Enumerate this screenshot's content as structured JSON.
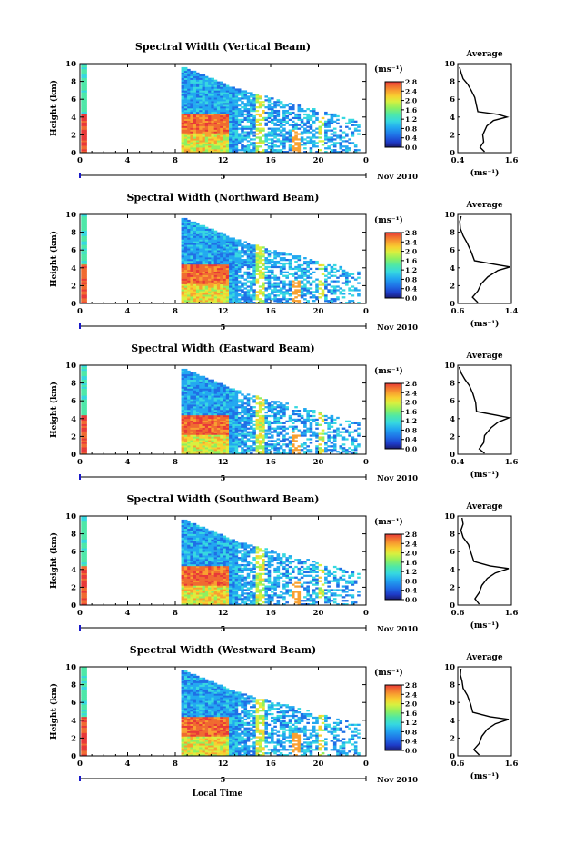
{
  "chart_data": [
    {
      "type": "heatmap",
      "title": "Spectral Width (Vertical Beam)",
      "ylabel": "Height (km)",
      "ylim": [
        0,
        10
      ],
      "yticks": [
        "0",
        "2",
        "4",
        "6",
        "8",
        "10"
      ],
      "xlim": [
        0,
        24
      ],
      "xticks": [
        "0",
        "4",
        "8",
        "12",
        "16",
        "20",
        "0"
      ],
      "date_marker": "5",
      "date_label": "Nov 2010",
      "colorbar": {
        "unit": "(ms⁻¹)",
        "ticks": [
          "0.0",
          "0.4",
          "0.8",
          "1.2",
          "1.6",
          "2.0",
          "2.4",
          "2.8"
        ]
      },
      "average": {
        "title": "Average",
        "xlabel": "(ms⁻¹)",
        "xlim": [
          0.4,
          1.6
        ],
        "xticks": [
          "0.4",
          "1.6"
        ],
        "profile": [
          [
            1.0,
            0.1
          ],
          [
            0.9,
            0.6
          ],
          [
            0.98,
            1.2
          ],
          [
            0.96,
            2.0
          ],
          [
            1.05,
            3.0
          ],
          [
            1.2,
            3.6
          ],
          [
            1.5,
            4.0
          ],
          [
            1.3,
            4.3
          ],
          [
            0.85,
            4.6
          ],
          [
            0.82,
            5.3
          ],
          [
            0.78,
            6.2
          ],
          [
            0.7,
            7.0
          ],
          [
            0.62,
            7.7
          ],
          [
            0.52,
            8.3
          ],
          [
            0.48,
            8.9
          ],
          [
            0.44,
            9.6
          ]
        ]
      }
    },
    {
      "type": "heatmap",
      "title": "Spectral Width (Northward Beam)",
      "ylabel": "Height (km)",
      "ylim": [
        0,
        10
      ],
      "yticks": [
        "0",
        "2",
        "4",
        "6",
        "8",
        "10"
      ],
      "xlim": [
        0,
        24
      ],
      "xticks": [
        "0",
        "4",
        "8",
        "12",
        "16",
        "20",
        "0"
      ],
      "date_marker": "5",
      "date_label": "Nov 2010",
      "colorbar": {
        "unit": "(ms⁻¹)",
        "ticks": [
          "0.0",
          "0.4",
          "0.8",
          "1.2",
          "1.6",
          "2.0",
          "2.4",
          "2.8"
        ]
      },
      "average": {
        "title": "Average",
        "xlabel": "(ms⁻¹)",
        "xlim": [
          0.6,
          1.4
        ],
        "xticks": [
          "0.6",
          "1.4"
        ],
        "profile": [
          [
            0.9,
            0.1
          ],
          [
            0.82,
            0.7
          ],
          [
            0.9,
            1.4
          ],
          [
            0.95,
            2.2
          ],
          [
            1.05,
            3.0
          ],
          [
            1.2,
            3.7
          ],
          [
            1.38,
            4.1
          ],
          [
            1.15,
            4.4
          ],
          [
            0.85,
            4.8
          ],
          [
            0.8,
            5.8
          ],
          [
            0.74,
            6.8
          ],
          [
            0.68,
            7.6
          ],
          [
            0.64,
            8.4
          ],
          [
            0.63,
            9.2
          ],
          [
            0.65,
            9.8
          ]
        ]
      }
    },
    {
      "type": "heatmap",
      "title": "Spectral Width (Eastward Beam)",
      "ylabel": "Height (km)",
      "ylim": [
        0,
        10
      ],
      "yticks": [
        "0",
        "2",
        "4",
        "6",
        "8",
        "10"
      ],
      "xlim": [
        0,
        24
      ],
      "xticks": [
        "0",
        "4",
        "8",
        "12",
        "16",
        "20",
        "0"
      ],
      "date_marker": "5",
      "date_label": "Nov 2010",
      "colorbar": {
        "unit": "(ms⁻¹)",
        "ticks": [
          "0.0",
          "0.4",
          "0.8",
          "1.2",
          "1.6",
          "2.0",
          "2.4",
          "2.8"
        ]
      },
      "average": {
        "title": "Average",
        "xlabel": "(ms⁻¹)",
        "xlim": [
          0.4,
          1.6
        ],
        "xticks": [
          "0.4",
          "1.6"
        ],
        "profile": [
          [
            1.0,
            0.1
          ],
          [
            0.88,
            0.6
          ],
          [
            0.98,
            1.3
          ],
          [
            1.0,
            2.1
          ],
          [
            1.15,
            3.0
          ],
          [
            1.3,
            3.6
          ],
          [
            1.55,
            4.1
          ],
          [
            1.25,
            4.4
          ],
          [
            0.82,
            4.8
          ],
          [
            0.8,
            5.8
          ],
          [
            0.74,
            6.8
          ],
          [
            0.66,
            7.7
          ],
          [
            0.56,
            8.4
          ],
          [
            0.48,
            9.1
          ],
          [
            0.43,
            9.8
          ]
        ]
      }
    },
    {
      "type": "heatmap",
      "title": "Spectral Width (Southward Beam)",
      "ylabel": "Height (km)",
      "ylim": [
        0,
        10
      ],
      "yticks": [
        "0",
        "2",
        "4",
        "6",
        "8",
        "10"
      ],
      "xlim": [
        0,
        24
      ],
      "xticks": [
        "0",
        "4",
        "8",
        "12",
        "16",
        "20",
        "0"
      ],
      "date_marker": "5",
      "date_label": "Nov 2010",
      "colorbar": {
        "unit": "(ms⁻¹)",
        "ticks": [
          "0.0",
          "0.4",
          "0.8",
          "1.2",
          "1.6",
          "2.0",
          "2.4",
          "2.8"
        ]
      },
      "average": {
        "title": "Average",
        "xlabel": "(ms⁻¹)",
        "xlim": [
          0.6,
          1.6
        ],
        "xticks": [
          "0.6",
          "1.6"
        ],
        "profile": [
          [
            1.0,
            0.1
          ],
          [
            0.92,
            0.7
          ],
          [
            1.0,
            1.4
          ],
          [
            1.05,
            2.2
          ],
          [
            1.15,
            3.0
          ],
          [
            1.3,
            3.6
          ],
          [
            1.55,
            4.1
          ],
          [
            1.2,
            4.4
          ],
          [
            0.9,
            4.9
          ],
          [
            0.85,
            5.8
          ],
          [
            0.8,
            6.8
          ],
          [
            0.7,
            7.6
          ],
          [
            0.66,
            8.4
          ],
          [
            0.7,
            9.1
          ],
          [
            0.68,
            9.8
          ]
        ]
      }
    },
    {
      "type": "heatmap",
      "title": "Spectral Width (Westward Beam)",
      "ylabel": "Height (km)",
      "ylim": [
        0,
        10
      ],
      "yticks": [
        "0",
        "2",
        "4",
        "6",
        "8",
        "10"
      ],
      "xlim": [
        0,
        24
      ],
      "xticks": [
        "0",
        "4",
        "8",
        "12",
        "16",
        "20",
        "0"
      ],
      "date_marker": "5",
      "date_label": "Nov 2010",
      "xlabel": "Local Time",
      "colorbar": {
        "unit": "(ms⁻¹)",
        "ticks": [
          "0.0",
          "0.4",
          "0.8",
          "1.2",
          "1.6",
          "2.0",
          "2.4",
          "2.8"
        ]
      },
      "average": {
        "title": "Average",
        "xlabel": "(ms⁻¹)",
        "xlim": [
          0.6,
          1.6
        ],
        "xticks": [
          "0.6",
          "1.6"
        ],
        "profile": [
          [
            1.0,
            0.1
          ],
          [
            0.9,
            0.7
          ],
          [
            1.0,
            1.4
          ],
          [
            1.05,
            2.2
          ],
          [
            1.15,
            3.0
          ],
          [
            1.3,
            3.6
          ],
          [
            1.55,
            4.1
          ],
          [
            1.2,
            4.4
          ],
          [
            0.88,
            4.9
          ],
          [
            0.84,
            5.8
          ],
          [
            0.78,
            6.8
          ],
          [
            0.7,
            7.6
          ],
          [
            0.68,
            8.4
          ],
          [
            0.65,
            9.1
          ],
          [
            0.66,
            9.8
          ]
        ]
      }
    }
  ],
  "colors": {
    "scale": [
      "#1a1a6e",
      "#1e3cc8",
      "#1f6fe6",
      "#22a8f0",
      "#36d8e0",
      "#4ee8a8",
      "#8ef060",
      "#d8f040",
      "#f8d030",
      "#f8a030",
      "#f06a30",
      "#e83838"
    ]
  }
}
